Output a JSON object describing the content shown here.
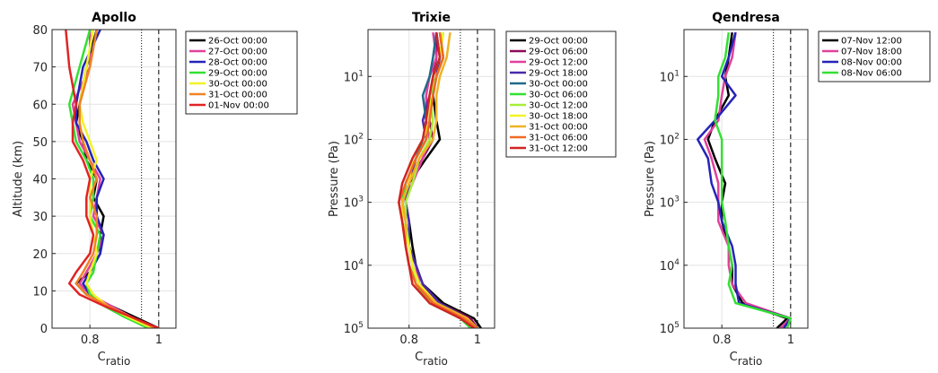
{
  "chart_data": [
    {
      "type": "line",
      "title": "Apollo",
      "ylabel": "Altitude (km)",
      "xlabel": "C",
      "xlabel_subscript": "ratio",
      "xlim": [
        0.69,
        1.05
      ],
      "xticks": [
        0.8,
        1
      ],
      "ylim": [
        0,
        80
      ],
      "yticks": [
        0,
        10,
        20,
        30,
        40,
        50,
        60,
        70,
        80
      ],
      "y_scale": "linear",
      "y_direction": "normal",
      "grid": true,
      "reference_lines": [
        {
          "value": 0.95,
          "style": "dotted"
        },
        {
          "value": 1,
          "style": "dashed"
        }
      ],
      "y": [
        0,
        3,
        6,
        9,
        12,
        15,
        20,
        25,
        30,
        35,
        40,
        45,
        50,
        55,
        60,
        70,
        80
      ],
      "series": [
        {
          "name": "26-Oct 00:00",
          "color": "#000000",
          "x": [
            1.0,
            0.93,
            0.86,
            0.79,
            0.76,
            0.8,
            0.83,
            0.83,
            0.84,
            0.81,
            0.82,
            0.79,
            0.78,
            0.76,
            0.77,
            0.79,
            0.82
          ]
        },
        {
          "name": "27-Oct 00:00",
          "color": "#e0409b",
          "x": [
            0.99,
            0.92,
            0.86,
            0.8,
            0.77,
            0.79,
            0.82,
            0.84,
            0.81,
            0.82,
            0.83,
            0.8,
            0.77,
            0.76,
            0.75,
            0.8,
            0.8
          ]
        },
        {
          "name": "28-Oct 00:00",
          "color": "#2424b8",
          "x": [
            0.98,
            0.91,
            0.85,
            0.8,
            0.78,
            0.8,
            0.83,
            0.84,
            0.82,
            0.82,
            0.84,
            0.81,
            0.79,
            0.76,
            0.76,
            0.78,
            0.83
          ]
        },
        {
          "name": "29-Oct 00:00",
          "color": "#33e033",
          "x": [
            0.97,
            0.9,
            0.84,
            0.8,
            0.79,
            0.81,
            0.82,
            0.83,
            0.8,
            0.81,
            0.81,
            0.79,
            0.76,
            0.75,
            0.74,
            0.77,
            0.8
          ]
        },
        {
          "name": "30-Oct 00:00",
          "color": "#f2f226",
          "x": [
            0.98,
            0.91,
            0.85,
            0.81,
            0.79,
            0.8,
            0.82,
            0.81,
            0.8,
            0.8,
            0.8,
            0.82,
            0.8,
            0.78,
            0.77,
            0.79,
            0.81
          ]
        },
        {
          "name": "31-Oct 00:00",
          "color": "#f08224",
          "x": [
            0.99,
            0.92,
            0.85,
            0.79,
            0.76,
            0.78,
            0.81,
            0.82,
            0.82,
            0.8,
            0.82,
            0.8,
            0.78,
            0.77,
            0.77,
            0.8,
            0.82
          ]
        },
        {
          "name": "01-Nov 00:00",
          "color": "#e02424",
          "x": [
            1.0,
            0.92,
            0.84,
            0.77,
            0.74,
            0.76,
            0.8,
            0.81,
            0.79,
            0.79,
            0.8,
            0.78,
            0.75,
            0.75,
            0.76,
            0.74,
            0.73
          ]
        }
      ]
    },
    {
      "type": "line",
      "title": "Trixie",
      "ylabel": "Pressure (Pa)",
      "xlabel": "C",
      "xlabel_subscript": "ratio",
      "xlim": [
        0.68,
        1.05
      ],
      "xticks": [
        0.8,
        1
      ],
      "ylim": [
        100000,
        1.8
      ],
      "yticks": [
        {
          "value": 10,
          "label": "10^1"
        },
        {
          "value": 100,
          "label": "10^2"
        },
        {
          "value": 1000,
          "label": "10^3"
        },
        {
          "value": 10000,
          "label": "10^4"
        },
        {
          "value": 100000,
          "label": "10^5"
        }
      ],
      "y_scale": "log",
      "y_direction": "reversed",
      "grid": true,
      "reference_lines": [
        {
          "value": 0.95,
          "style": "dotted"
        },
        {
          "value": 1,
          "style": "dashed"
        }
      ],
      "y": [
        100000,
        70000,
        40000,
        20000,
        10000,
        5000,
        2000,
        1000,
        500,
        200,
        100,
        50,
        20,
        10,
        5,
        2
      ],
      "series": [
        {
          "name": "29-Oct 00:00",
          "color": "#000000",
          "x": [
            1.01,
            0.99,
            0.9,
            0.84,
            0.82,
            0.81,
            0.8,
            0.79,
            0.8,
            0.85,
            0.89,
            0.88,
            0.87,
            0.88,
            0.9,
            0.89
          ]
        },
        {
          "name": "29-Oct 06:00",
          "color": "#8a0a5a",
          "x": [
            1.0,
            0.98,
            0.89,
            0.83,
            0.81,
            0.8,
            0.79,
            0.78,
            0.8,
            0.84,
            0.87,
            0.86,
            0.86,
            0.87,
            0.88,
            0.88
          ]
        },
        {
          "name": "29-Oct 12:00",
          "color": "#e040a0",
          "x": [
            0.99,
            0.97,
            0.88,
            0.83,
            0.82,
            0.8,
            0.79,
            0.78,
            0.81,
            0.84,
            0.86,
            0.85,
            0.85,
            0.86,
            0.88,
            0.87
          ]
        },
        {
          "name": "29-Oct 18:00",
          "color": "#4a2aa8",
          "x": [
            1.0,
            0.97,
            0.89,
            0.84,
            0.82,
            0.8,
            0.8,
            0.79,
            0.8,
            0.82,
            0.85,
            0.84,
            0.86,
            0.88,
            0.89,
            0.88
          ]
        },
        {
          "name": "30-Oct 00:00",
          "color": "#1f6a8a",
          "x": [
            0.99,
            0.96,
            0.87,
            0.83,
            0.81,
            0.8,
            0.79,
            0.78,
            0.79,
            0.82,
            0.84,
            0.85,
            0.84,
            0.86,
            0.87,
            0.88
          ]
        },
        {
          "name": "30-Oct 06:00",
          "color": "#33e033",
          "x": [
            0.98,
            0.95,
            0.86,
            0.82,
            0.8,
            0.79,
            0.79,
            0.78,
            0.79,
            0.82,
            0.85,
            0.86,
            0.87,
            0.87,
            0.89,
            0.9
          ]
        },
        {
          "name": "30-Oct 12:00",
          "color": "#a6ee3a",
          "x": [
            0.99,
            0.96,
            0.87,
            0.82,
            0.81,
            0.8,
            0.79,
            0.79,
            0.81,
            0.83,
            0.86,
            0.87,
            0.86,
            0.88,
            0.9,
            0.89
          ]
        },
        {
          "name": "30-Oct 18:00",
          "color": "#f2f226",
          "x": [
            0.99,
            0.97,
            0.88,
            0.83,
            0.81,
            0.8,
            0.78,
            0.78,
            0.8,
            0.81,
            0.84,
            0.86,
            0.86,
            0.87,
            0.89,
            0.9
          ]
        },
        {
          "name": "31-Oct 00:00",
          "color": "#f0b224",
          "x": [
            1.0,
            0.97,
            0.88,
            0.82,
            0.8,
            0.79,
            0.79,
            0.78,
            0.8,
            0.83,
            0.87,
            0.88,
            0.88,
            0.89,
            0.91,
            0.92
          ]
        },
        {
          "name": "31-Oct 06:00",
          "color": "#f06a24",
          "x": [
            1.0,
            0.96,
            0.87,
            0.82,
            0.8,
            0.79,
            0.78,
            0.77,
            0.79,
            0.82,
            0.85,
            0.86,
            0.87,
            0.88,
            0.9,
            0.89
          ]
        },
        {
          "name": "31-Oct 12:00",
          "color": "#d02424",
          "x": [
            0.99,
            0.95,
            0.86,
            0.81,
            0.8,
            0.79,
            0.78,
            0.77,
            0.78,
            0.81,
            0.84,
            0.85,
            0.86,
            0.87,
            0.89,
            0.88
          ]
        }
      ]
    },
    {
      "type": "line",
      "title": "Qendresa",
      "ylabel": "Pressure (Pa)",
      "xlabel": "C",
      "xlabel_subscript": "ratio",
      "xlim": [
        0.69,
        1.05
      ],
      "xticks": [
        0.8,
        1
      ],
      "ylim": [
        100000,
        1.8
      ],
      "yticks": [
        {
          "value": 10,
          "label": "10^1"
        },
        {
          "value": 100,
          "label": "10^2"
        },
        {
          "value": 1000,
          "label": "10^3"
        },
        {
          "value": 10000,
          "label": "10^4"
        },
        {
          "value": 100000,
          "label": "10^5"
        }
      ],
      "y_scale": "log",
      "y_direction": "reversed",
      "grid": true,
      "reference_lines": [
        {
          "value": 0.95,
          "style": "dotted"
        },
        {
          "value": 1,
          "style": "dashed"
        }
      ],
      "y": [
        100000,
        70000,
        40000,
        20000,
        10000,
        5000,
        2000,
        1000,
        500,
        200,
        100,
        50,
        20,
        10,
        5,
        2
      ],
      "series": [
        {
          "name": "07-Nov 12:00",
          "color": "#000000",
          "x": [
            0.96,
            0.99,
            0.86,
            0.83,
            0.83,
            0.82,
            0.8,
            0.8,
            0.81,
            0.78,
            0.76,
            0.78,
            0.82,
            0.81,
            0.82,
            0.83
          ]
        },
        {
          "name": "07-Nov 18:00",
          "color": "#e0409b",
          "x": [
            0.97,
            1.0,
            0.87,
            0.83,
            0.82,
            0.82,
            0.79,
            0.79,
            0.79,
            0.77,
            0.75,
            0.79,
            0.8,
            0.81,
            0.83,
            0.84
          ]
        },
        {
          "name": "08-Nov 00:00",
          "color": "#2424b8",
          "x": [
            0.98,
            1.0,
            0.85,
            0.84,
            0.84,
            0.83,
            0.8,
            0.79,
            0.77,
            0.76,
            0.73,
            0.78,
            0.84,
            0.8,
            0.82,
            0.84
          ]
        },
        {
          "name": "08-Nov 06:00",
          "color": "#33e033",
          "x": [
            0.99,
            1.0,
            0.84,
            0.82,
            0.83,
            0.82,
            0.81,
            0.8,
            0.8,
            0.8,
            0.8,
            0.78,
            0.79,
            0.79,
            0.81,
            0.82
          ]
        }
      ]
    }
  ]
}
